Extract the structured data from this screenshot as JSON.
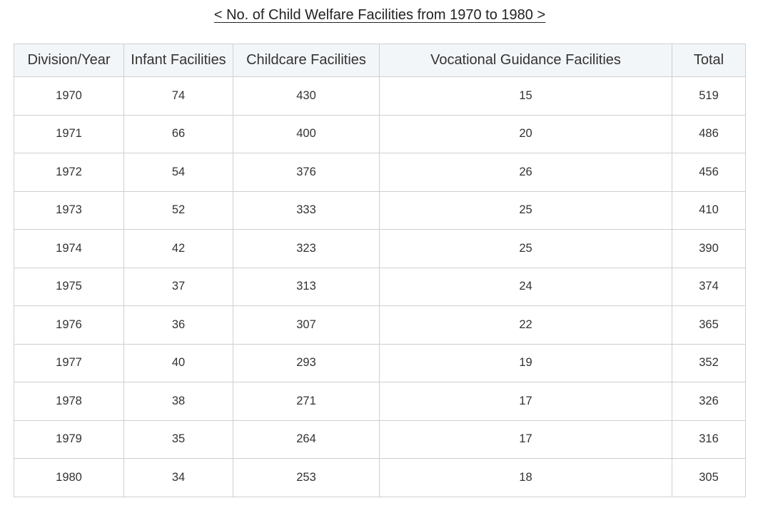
{
  "chart_data": {
    "type": "table",
    "title": "< No. of Child Welfare Facilities from 1970 to 1980 >",
    "columns": [
      "Division/Year",
      "Infant Facilities",
      "Childcare Facilities",
      "Vocational Guidance Facilities",
      "Total"
    ],
    "rows": [
      [
        "1970",
        "74",
        "430",
        "15",
        "519"
      ],
      [
        "1971",
        "66",
        "400",
        "20",
        "486"
      ],
      [
        "1972",
        "54",
        "376",
        "26",
        "456"
      ],
      [
        "1973",
        "52",
        "333",
        "25",
        "410"
      ],
      [
        "1974",
        "42",
        "323",
        "25",
        "390"
      ],
      [
        "1975",
        "37",
        "313",
        "24",
        "374"
      ],
      [
        "1976",
        "36",
        "307",
        "22",
        "365"
      ],
      [
        "1977",
        "40",
        "293",
        "19",
        "352"
      ],
      [
        "1978",
        "38",
        "271",
        "17",
        "326"
      ],
      [
        "1979",
        "35",
        "264",
        "17",
        "316"
      ],
      [
        "1980",
        "34",
        "253",
        "18",
        "305"
      ]
    ]
  },
  "colors": {
    "header_bg": "#f3f6f9",
    "border": "#cfcfcf",
    "text": "#333333"
  }
}
